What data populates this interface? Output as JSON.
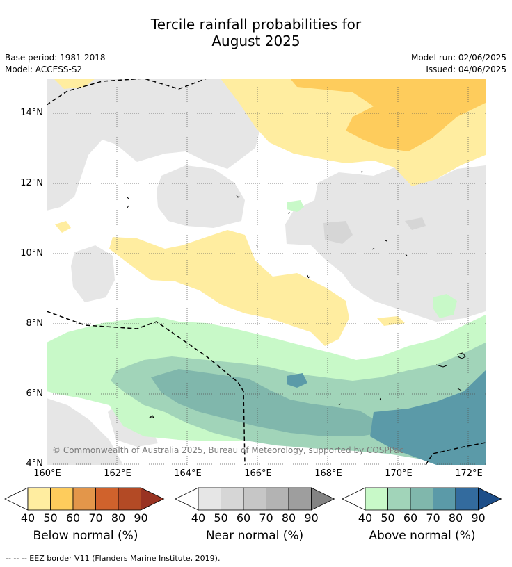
{
  "title": {
    "line1": "Tercile rainfall probabilities for",
    "line2": "August 2025"
  },
  "meta": {
    "base_period": "Base period: 1981-2018",
    "model": "Model: ACCESS-S2",
    "model_run": "Model run: 02/06/2025",
    "issued": "Issued: 04/06/2025"
  },
  "axes": {
    "y_ticks": [
      "14°N",
      "12°N",
      "10°N",
      "8°N",
      "6°N",
      "4°N"
    ],
    "x_ticks": [
      "160°E",
      "162°E",
      "164°E",
      "166°E",
      "168°E",
      "170°E",
      "172°E"
    ]
  },
  "copyright": "© Commonwealth of Australia 2025, Bureau of Meteorology, supported by COSPPac",
  "legend": {
    "below": {
      "label": "Below normal (%)",
      "ticks": [
        "40",
        "50",
        "60",
        "70",
        "80",
        "90"
      ],
      "colors": [
        "#ffeda0",
        "#fecc5c",
        "#e3964a",
        "#d0622c",
        "#b34a25",
        "#993322"
      ]
    },
    "near": {
      "label": "Near normal (%)",
      "ticks": [
        "40",
        "50",
        "60",
        "70",
        "80",
        "90"
      ],
      "colors": [
        "#e6e6e6",
        "#d6d6d6",
        "#c6c6c6",
        "#b3b3b3",
        "#9e9e9e",
        "#838383"
      ]
    },
    "above": {
      "label": "Above normal (%)",
      "ticks": [
        "40",
        "50",
        "60",
        "70",
        "80",
        "90"
      ],
      "colors": [
        "#c8f9c8",
        "#a1d4b9",
        "#80b7ac",
        "#5b9aa8",
        "#336b9e",
        "#1d4e89"
      ]
    }
  },
  "footnote": "--  --  -- EEZ border V11 (Flanders Marine Institute, 2019)."
}
